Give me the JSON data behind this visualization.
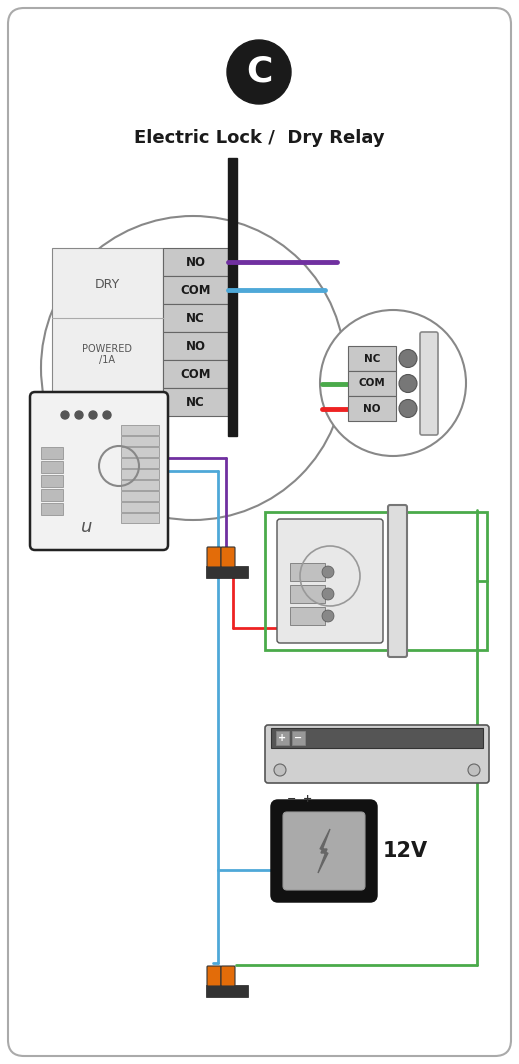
{
  "title": "Electric Lock /  Dry Relay",
  "badge_letter": "C",
  "bg_color": "#ffffff",
  "border_color": "#cccccc",
  "wire_colors": {
    "purple": "#7030a0",
    "blue": "#4ea8d8",
    "green": "#4aaa4a",
    "red": "#ee2222",
    "orange": "#e36c09"
  },
  "relay_labels": [
    "NO",
    "COM",
    "NC",
    "NO",
    "COM",
    "NC"
  ],
  "connector_labels": [
    "NC",
    "COM",
    "NO"
  ],
  "label_12v": "12V"
}
